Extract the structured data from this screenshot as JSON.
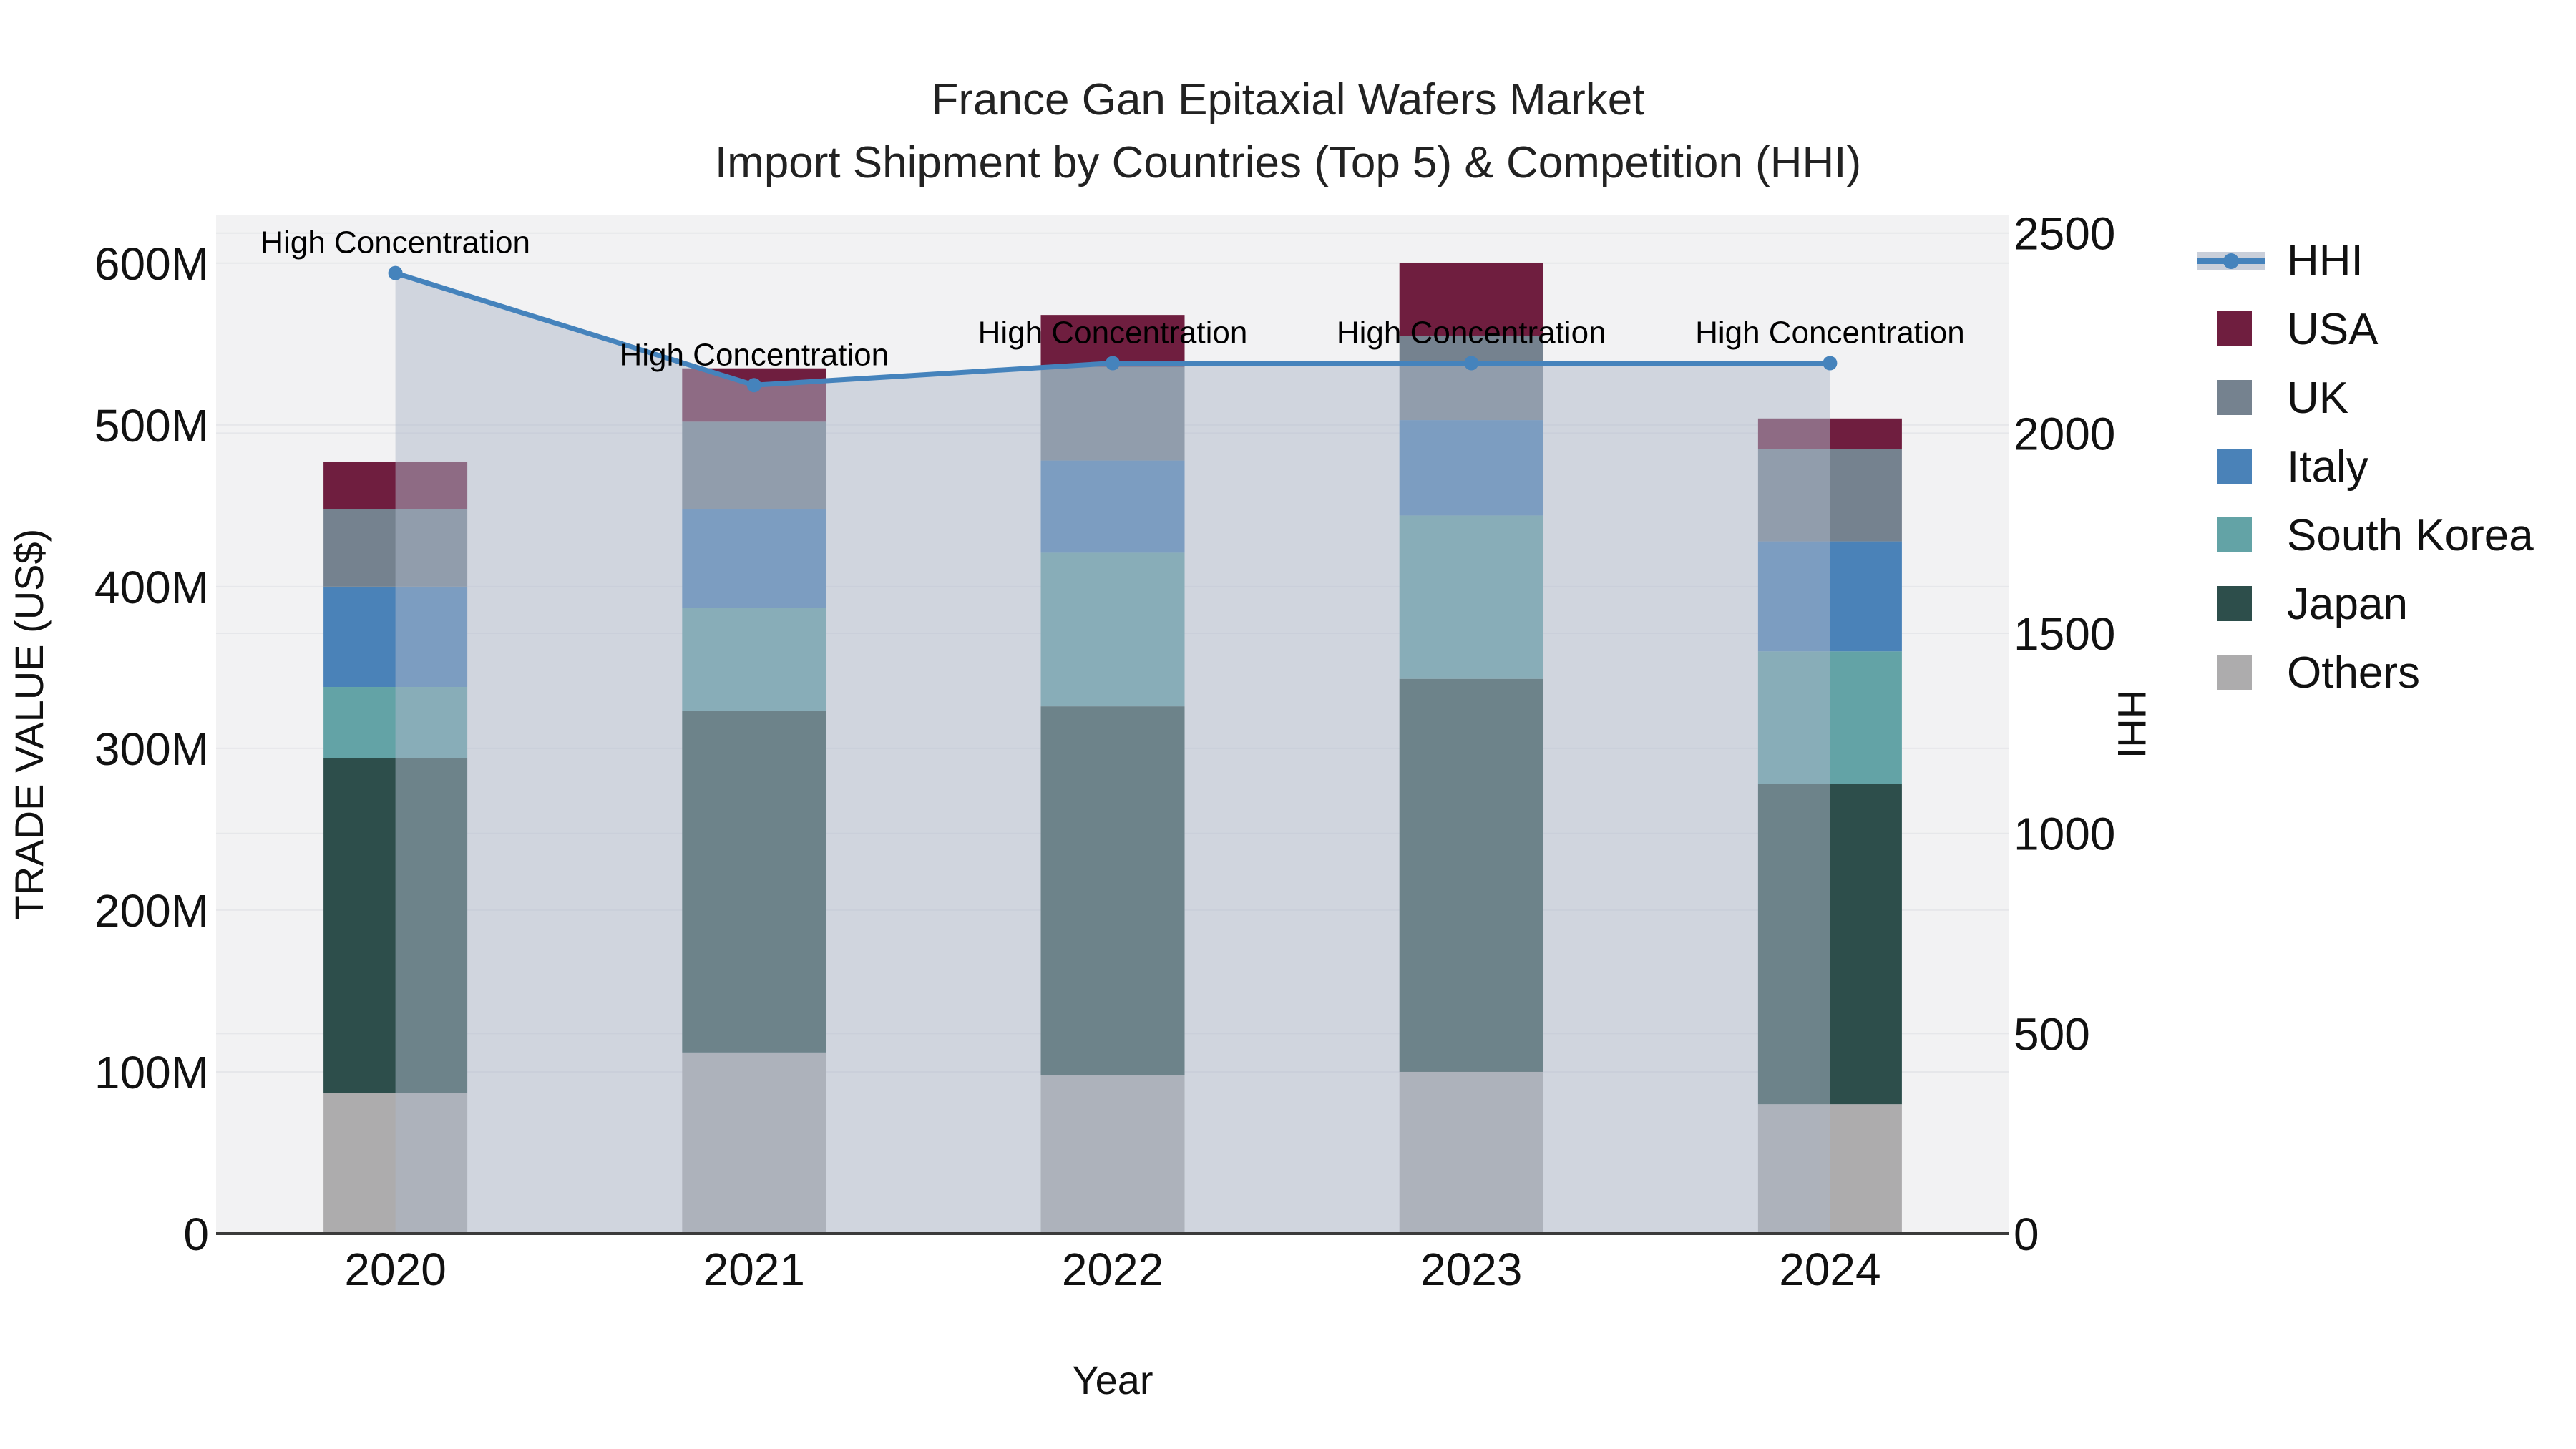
{
  "title": {
    "line1": "France Gan Epitaxial Wafers Market",
    "line2": "Import Shipment by Countries (Top 5) & Competition (HHI)"
  },
  "chart_data": {
    "type": "bar",
    "stacked": true,
    "categories": [
      "2020",
      "2021",
      "2022",
      "2023",
      "2024"
    ],
    "xlabel": "Year",
    "ylabel_left": "TRADE VALUE (US$)",
    "ylabel_right": "HHI",
    "unit": "US$ millions",
    "y_left_ticks": [
      "0",
      "100M",
      "200M",
      "300M",
      "400M",
      "500M",
      "600M"
    ],
    "y_left_tick_values": [
      0,
      100,
      200,
      300,
      400,
      500,
      600
    ],
    "y_left_max": 630,
    "y_right_ticks": [
      "0",
      "500",
      "1000",
      "1500",
      "2000",
      "2500"
    ],
    "y_right_tick_values": [
      0,
      500,
      1000,
      1500,
      2000,
      2500
    ],
    "y_right_max": 2546,
    "grid": true,
    "legend_position": "right",
    "series": [
      {
        "name": "Others",
        "color": "#ADACAD",
        "values": [
          87,
          112,
          98,
          100,
          80
        ]
      },
      {
        "name": "Japan",
        "color": "#2D4E4B",
        "values": [
          207,
          211,
          228,
          243,
          198
        ]
      },
      {
        "name": "South Korea",
        "color": "#63A3A6",
        "values": [
          44,
          64,
          95,
          101,
          82
        ]
      },
      {
        "name": "Italy",
        "color": "#4A82B8",
        "values": [
          62,
          61,
          57,
          59,
          68
        ]
      },
      {
        "name": "UK",
        "color": "#75828F",
        "values": [
          48,
          54,
          58,
          52,
          57
        ]
      },
      {
        "name": "USA",
        "color": "#6F1E3F",
        "values": [
          29,
          33,
          32,
          45,
          19
        ]
      }
    ],
    "bar_totals": [
      477,
      535,
      568,
      600,
      504
    ],
    "line_series": {
      "name": "HHI",
      "axis": "right",
      "color": "#4583BC",
      "area_color": "#C9CFDA",
      "overlay_color": "rgba(174,184,202,0.5)",
      "values": [
        2400,
        2120,
        2175,
        2175,
        2175
      ]
    },
    "annotations": [
      {
        "category": "2020",
        "text": "High Concentration"
      },
      {
        "category": "2021",
        "text": "High Concentration"
      },
      {
        "category": "2022",
        "text": "High Concentration"
      },
      {
        "category": "2023",
        "text": "High Concentration"
      },
      {
        "category": "2024",
        "text": "High Concentration"
      }
    ]
  },
  "legend": {
    "items": [
      {
        "label": "HHI",
        "sample": "line"
      },
      {
        "label": "USA",
        "sample": "swatch",
        "color": "#6F1E3F"
      },
      {
        "label": "UK",
        "sample": "swatch",
        "color": "#75828F"
      },
      {
        "label": "Italy",
        "sample": "swatch",
        "color": "#4A82B8"
      },
      {
        "label": "South Korea",
        "sample": "swatch",
        "color": "#63A3A6"
      },
      {
        "label": "Japan",
        "sample": "swatch",
        "color": "#2D4E4B"
      },
      {
        "label": "Others",
        "sample": "swatch",
        "color": "#ADACAD"
      }
    ]
  },
  "style_colors": {
    "plot_bg": "#F2F2F3",
    "grid": "#E6E7EA",
    "axis_line": "#3B3B3B",
    "text": "#111111"
  }
}
